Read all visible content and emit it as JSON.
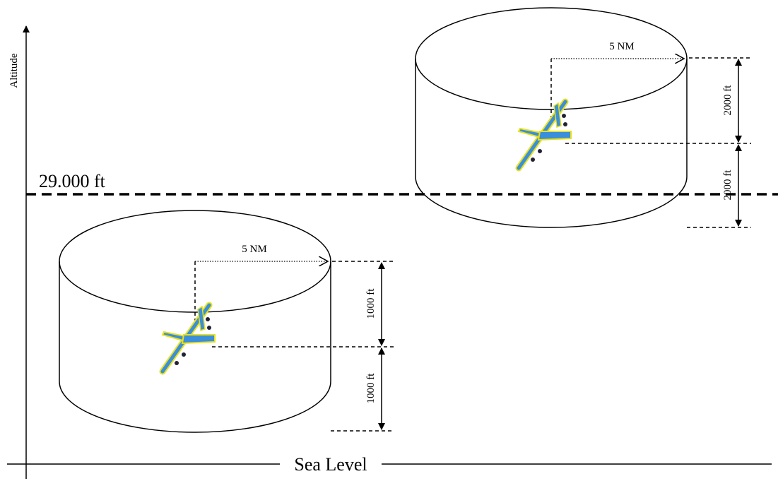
{
  "axis": {
    "label": "Altitude"
  },
  "reference_level": {
    "label": "29.000 ft"
  },
  "sea_level": {
    "label": "Sea Level"
  },
  "zones": [
    {
      "radius_label": "5 NM",
      "upper_label": "2000 ft",
      "lower_label": "2000 ft"
    },
    {
      "radius_label": "5 NM",
      "upper_label": "1000 ft",
      "lower_label": "1000 ft"
    }
  ]
}
